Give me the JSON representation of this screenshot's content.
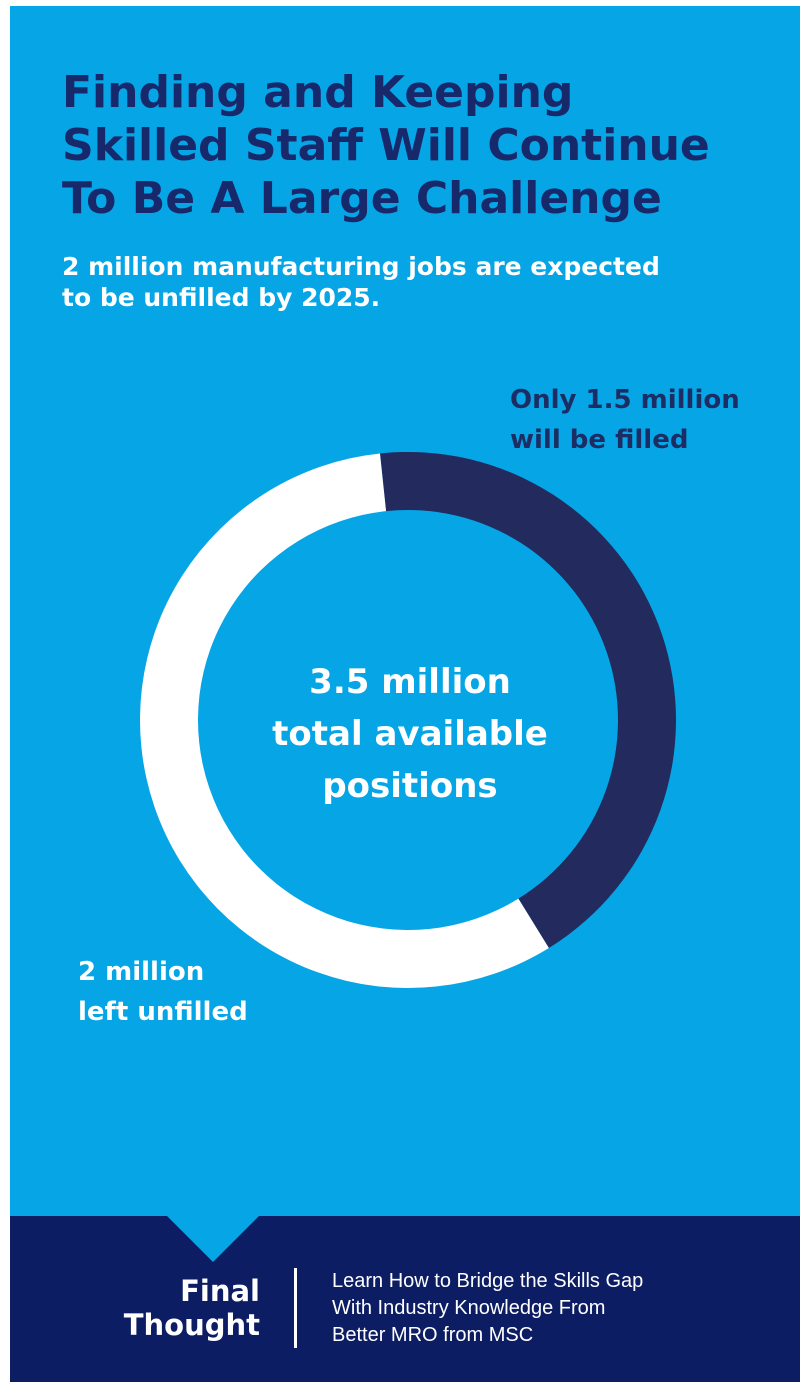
{
  "title": {
    "lines": [
      "Finding and Keeping",
      "Skilled Staff Will Continue",
      "To Be A Large Challenge"
    ]
  },
  "subtitle": {
    "lines": [
      "2 million manufacturing jobs are expected",
      "to be unfilled by 2025."
    ]
  },
  "chart_data": {
    "type": "pie",
    "donut": true,
    "total_label": [
      "3.5 million",
      "total available",
      "positions"
    ],
    "slices": [
      {
        "label": [
          "Only 1.5 million",
          "will be filled"
        ],
        "value": 1.5,
        "color": "#222a5e"
      },
      {
        "label": [
          "2 million",
          "left unfilled"
        ],
        "value": 2.0,
        "color": "#ffffff"
      }
    ]
  },
  "footer": {
    "heading": [
      "Final",
      "Thought"
    ],
    "link_lines": [
      "Learn How to Bridge the Skills Gap",
      "With Industry Knowledge From",
      "Better MRO from MSC"
    ]
  },
  "colors": {
    "background": "#05a5e6",
    "title": "#17286b",
    "footer": "#0c1d63"
  }
}
